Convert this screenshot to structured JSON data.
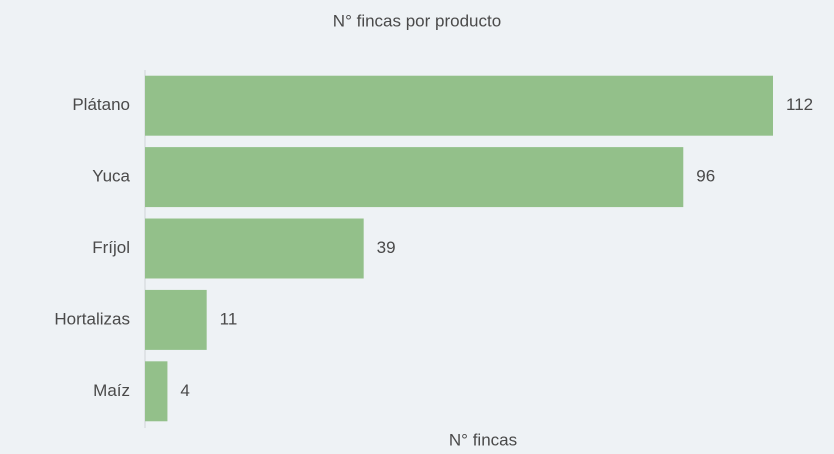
{
  "chart_data": {
    "type": "bar",
    "orientation": "horizontal",
    "title": "N° fincas por producto",
    "x_label": "N° fincas",
    "categories": [
      "Plátano",
      "Yuca",
      "Fríjol",
      "Hortalizas",
      "Maíz"
    ],
    "values": [
      112,
      96,
      39,
      11,
      4
    ],
    "color": "#93c08a",
    "xlim": [
      0,
      112
    ],
    "grid": false
  }
}
